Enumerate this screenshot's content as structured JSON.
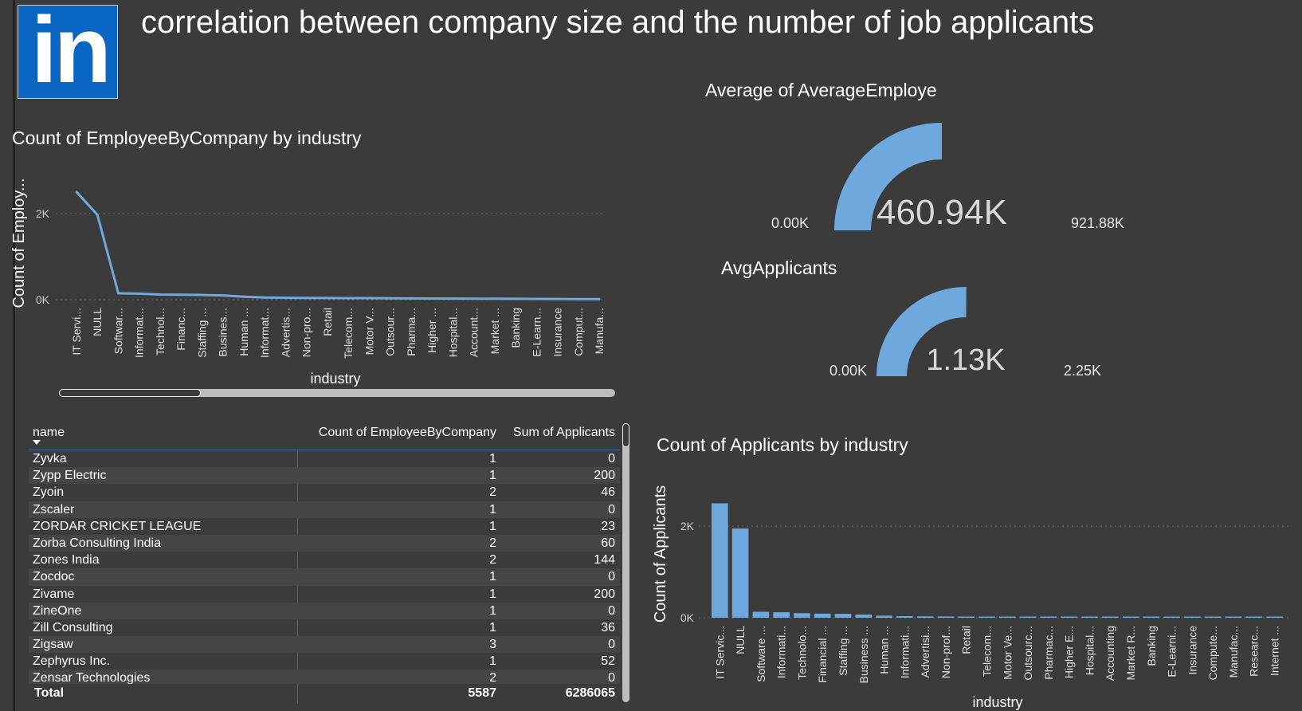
{
  "header": {
    "title": "correlation between company size and the number of job applicants",
    "logo_text": "in",
    "logo_color": "#0a66c2"
  },
  "colors": {
    "series": "#6fa8dc",
    "background": "#3b3b3b",
    "accent_line": "#2f6fb3"
  },
  "line_visual": {
    "title": "Count of EmployeeByCompany by industry"
  },
  "gauge1": {
    "title": "Average of AverageEmploye",
    "value_label": "460.94K",
    "min_label": "0.00K",
    "max_label": "921.88K"
  },
  "gauge2": {
    "title": "AvgApplicants",
    "value_label": "1.13K",
    "min_label": "0.00K",
    "max_label": "2.25K"
  },
  "bar_visual": {
    "title": "Count of Applicants by industry"
  },
  "table": {
    "columns": [
      "name",
      "Count of EmployeeByCompany",
      "Sum of Applicants"
    ],
    "rows": [
      [
        "Zyvka",
        "1",
        "0"
      ],
      [
        "Zypp Electric",
        "1",
        "200"
      ],
      [
        "Zyoin",
        "2",
        "46"
      ],
      [
        "Zscaler",
        "1",
        "0"
      ],
      [
        "ZORDAR CRICKET LEAGUE",
        "1",
        "23"
      ],
      [
        "Zorba Consulting India",
        "2",
        "60"
      ],
      [
        "Zones India",
        "2",
        "144"
      ],
      [
        "Zocdoc",
        "1",
        "0"
      ],
      [
        "Zivame",
        "1",
        "200"
      ],
      [
        "ZineOne",
        "1",
        "0"
      ],
      [
        "Zill Consulting",
        "1",
        "36"
      ],
      [
        "Zigsaw",
        "3",
        "0"
      ],
      [
        "Zephyrus Inc.",
        "1",
        "52"
      ],
      [
        "Zensar Technologies",
        "2",
        "0"
      ]
    ],
    "total": [
      "Total",
      "5587",
      "6286065"
    ]
  },
  "chart_data": [
    {
      "type": "line",
      "title": "Count of EmployeeByCompany by industry",
      "xlabel": "industry",
      "ylabel": "Count of Employ...",
      "ylim": [
        0,
        2700
      ],
      "yticks": [
        0,
        2000
      ],
      "ytick_labels": [
        "0K",
        "2K"
      ],
      "grid": true,
      "categories": [
        "IT Servi...",
        "NULL",
        "Softwar...",
        "Informat...",
        "Technol...",
        "Financ...",
        "Staffing ...",
        "Busines...",
        "Human ...",
        "Informat...",
        "Advertis...",
        "Non-pro...",
        "Retail",
        "Telecom...",
        "Motor V...",
        "Outsour...",
        "Pharma...",
        "Higher ...",
        "Hospital...",
        "Account...",
        "Market ...",
        "Banking",
        "E-Learn...",
        "Insurance",
        "Comput...",
        "Manufa..."
      ],
      "values": [
        2500,
        1970,
        150,
        140,
        120,
        115,
        110,
        100,
        70,
        50,
        45,
        42,
        40,
        38,
        36,
        32,
        30,
        28,
        26,
        24,
        22,
        20,
        18,
        16,
        15,
        14
      ]
    },
    {
      "type": "gauge",
      "title": "Average of AverageEmploye",
      "min": 0,
      "max": 921880,
      "value": 460940,
      "min_label": "0.00K",
      "max_label": "921.88K",
      "value_label": "460.94K"
    },
    {
      "type": "gauge",
      "title": "AvgApplicants",
      "min": 0,
      "max": 2250,
      "value": 1130,
      "min_label": "0.00K",
      "max_label": "2.25K",
      "value_label": "1.13K"
    },
    {
      "type": "bar",
      "title": "Count of Applicants by industry",
      "xlabel": "industry",
      "ylabel": "Count of Applicants",
      "ylim": [
        0,
        2700
      ],
      "yticks": [
        0,
        2000
      ],
      "ytick_labels": [
        "0K",
        "2K"
      ],
      "grid": true,
      "categories": [
        "IT Servic...",
        "NULL",
        "Software ...",
        "Informati...",
        "Technolo...",
        "Financial ...",
        "Staffing ...",
        "Business ...",
        "Human ...",
        "Informati...",
        "Advertisi...",
        "Non-prof...",
        "Retail",
        "Telecom...",
        "Motor Ve...",
        "Outsourc...",
        "Pharmac...",
        "Higher E...",
        "Hospital...",
        "Accounting",
        "Market R...",
        "Banking",
        "E-Learni...",
        "Insurance",
        "Compute...",
        "Manufac...",
        "Researc...",
        "Internet ..."
      ],
      "values": [
        2500,
        1950,
        130,
        120,
        100,
        90,
        85,
        70,
        45,
        35,
        30,
        28,
        26,
        25,
        24,
        22,
        20,
        19,
        18,
        17,
        16,
        15,
        14,
        13,
        12,
        11,
        10,
        10
      ]
    }
  ]
}
